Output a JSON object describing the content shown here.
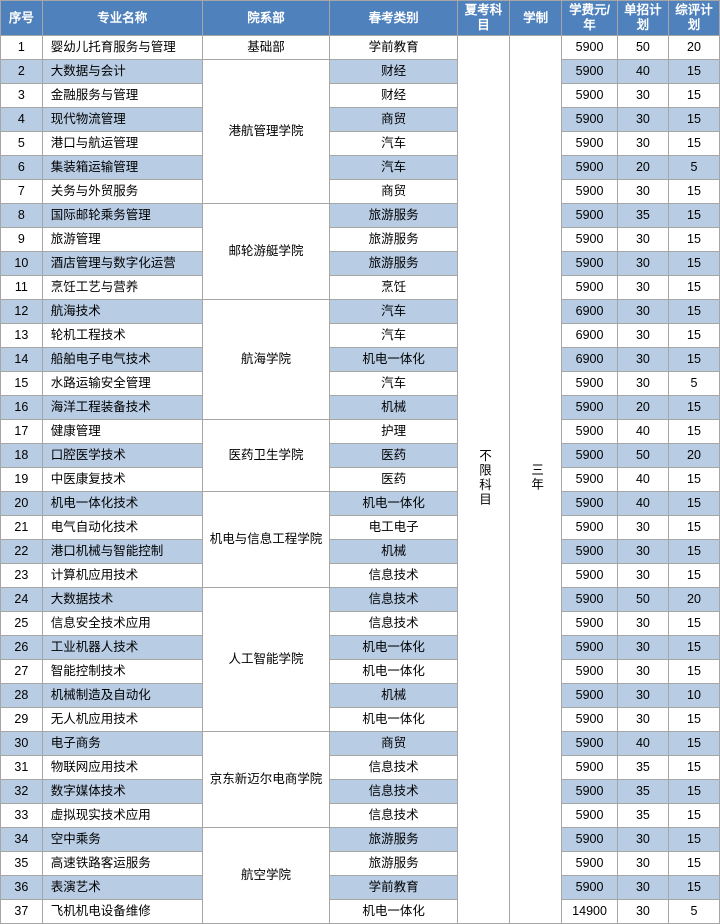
{
  "headers": [
    "序号",
    "专业名称",
    "院系部",
    "春考类别",
    "夏考科目",
    "学制",
    "学费元/年",
    "单招计划",
    "综评计划"
  ],
  "summer_subject": "不限科目",
  "duration": "三年",
  "departments": [
    {
      "name": "基础部",
      "start": 1,
      "span": 1
    },
    {
      "name": "港航管理学院",
      "start": 2,
      "span": 6
    },
    {
      "name": "邮轮游艇学院",
      "start": 8,
      "span": 4
    },
    {
      "name": "航海学院",
      "start": 12,
      "span": 5
    },
    {
      "name": "医药卫生学院",
      "start": 17,
      "span": 3
    },
    {
      "name": "机电与信息工程学院",
      "start": 20,
      "span": 4
    },
    {
      "name": "人工智能学院",
      "start": 24,
      "span": 6
    },
    {
      "name": "京东新迈尔电商学院",
      "start": 30,
      "span": 4
    },
    {
      "name": "航空学院",
      "start": 34,
      "span": 4
    }
  ],
  "rows": [
    {
      "n": 1,
      "major": "婴幼儿托育服务与管理",
      "cat": "学前教育",
      "fee": 5900,
      "p1": 50,
      "p2": 20
    },
    {
      "n": 2,
      "major": "大数据与会计",
      "cat": "财经",
      "fee": 5900,
      "p1": 40,
      "p2": 15
    },
    {
      "n": 3,
      "major": "金融服务与管理",
      "cat": "财经",
      "fee": 5900,
      "p1": 30,
      "p2": 15
    },
    {
      "n": 4,
      "major": "现代物流管理",
      "cat": "商贸",
      "fee": 5900,
      "p1": 30,
      "p2": 15
    },
    {
      "n": 5,
      "major": "港口与航运管理",
      "cat": "汽车",
      "fee": 5900,
      "p1": 30,
      "p2": 15
    },
    {
      "n": 6,
      "major": "集装箱运输管理",
      "cat": "汽车",
      "fee": 5900,
      "p1": 20,
      "p2": 5
    },
    {
      "n": 7,
      "major": "关务与外贸服务",
      "cat": "商贸",
      "fee": 5900,
      "p1": 30,
      "p2": 15
    },
    {
      "n": 8,
      "major": "国际邮轮乘务管理",
      "cat": "旅游服务",
      "fee": 5900,
      "p1": 35,
      "p2": 15
    },
    {
      "n": 9,
      "major": "旅游管理",
      "cat": "旅游服务",
      "fee": 5900,
      "p1": 30,
      "p2": 15
    },
    {
      "n": 10,
      "major": "酒店管理与数字化运营",
      "cat": "旅游服务",
      "fee": 5900,
      "p1": 30,
      "p2": 15
    },
    {
      "n": 11,
      "major": "烹饪工艺与营养",
      "cat": "烹饪",
      "fee": 5900,
      "p1": 30,
      "p2": 15
    },
    {
      "n": 12,
      "major": "航海技术",
      "cat": "汽车",
      "fee": 6900,
      "p1": 30,
      "p2": 15
    },
    {
      "n": 13,
      "major": "轮机工程技术",
      "cat": "汽车",
      "fee": 6900,
      "p1": 30,
      "p2": 15
    },
    {
      "n": 14,
      "major": "船舶电子电气技术",
      "cat": "机电一体化",
      "fee": 6900,
      "p1": 30,
      "p2": 15
    },
    {
      "n": 15,
      "major": "水路运输安全管理",
      "cat": "汽车",
      "fee": 5900,
      "p1": 30,
      "p2": 5
    },
    {
      "n": 16,
      "major": "海洋工程装备技术",
      "cat": "机械",
      "fee": 5900,
      "p1": 20,
      "p2": 15
    },
    {
      "n": 17,
      "major": "健康管理",
      "cat": "护理",
      "fee": 5900,
      "p1": 40,
      "p2": 15
    },
    {
      "n": 18,
      "major": "口腔医学技术",
      "cat": "医药",
      "fee": 5900,
      "p1": 50,
      "p2": 20
    },
    {
      "n": 19,
      "major": "中医康复技术",
      "cat": "医药",
      "fee": 5900,
      "p1": 40,
      "p2": 15
    },
    {
      "n": 20,
      "major": "机电一体化技术",
      "cat": "机电一体化",
      "fee": 5900,
      "p1": 40,
      "p2": 15
    },
    {
      "n": 21,
      "major": "电气自动化技术",
      "cat": "电工电子",
      "fee": 5900,
      "p1": 30,
      "p2": 15
    },
    {
      "n": 22,
      "major": "港口机械与智能控制",
      "cat": "机械",
      "fee": 5900,
      "p1": 30,
      "p2": 15
    },
    {
      "n": 23,
      "major": "计算机应用技术",
      "cat": "信息技术",
      "fee": 5900,
      "p1": 30,
      "p2": 15
    },
    {
      "n": 24,
      "major": "大数据技术",
      "cat": "信息技术",
      "fee": 5900,
      "p1": 50,
      "p2": 20
    },
    {
      "n": 25,
      "major": "信息安全技术应用",
      "cat": "信息技术",
      "fee": 5900,
      "p1": 30,
      "p2": 15
    },
    {
      "n": 26,
      "major": "工业机器人技术",
      "cat": "机电一体化",
      "fee": 5900,
      "p1": 30,
      "p2": 15
    },
    {
      "n": 27,
      "major": "智能控制技术",
      "cat": "机电一体化",
      "fee": 5900,
      "p1": 30,
      "p2": 15
    },
    {
      "n": 28,
      "major": "机械制造及自动化",
      "cat": "机械",
      "fee": 5900,
      "p1": 30,
      "p2": 10
    },
    {
      "n": 29,
      "major": "无人机应用技术",
      "cat": "机电一体化",
      "fee": 5900,
      "p1": 30,
      "p2": 15
    },
    {
      "n": 30,
      "major": "电子商务",
      "cat": "商贸",
      "fee": 5900,
      "p1": 40,
      "p2": 15
    },
    {
      "n": 31,
      "major": "物联网应用技术",
      "cat": "信息技术",
      "fee": 5900,
      "p1": 35,
      "p2": 15
    },
    {
      "n": 32,
      "major": "数字媒体技术",
      "cat": "信息技术",
      "fee": 5900,
      "p1": 35,
      "p2": 15
    },
    {
      "n": 33,
      "major": "虚拟现实技术应用",
      "cat": "信息技术",
      "fee": 5900,
      "p1": 35,
      "p2": 15
    },
    {
      "n": 34,
      "major": "空中乘务",
      "cat": "旅游服务",
      "fee": 5900,
      "p1": 30,
      "p2": 15
    },
    {
      "n": 35,
      "major": "高速铁路客运服务",
      "cat": "旅游服务",
      "fee": 5900,
      "p1": 30,
      "p2": 15
    },
    {
      "n": 36,
      "major": "表演艺术",
      "cat": "学前教育",
      "fee": 5900,
      "p1": 30,
      "p2": 15
    },
    {
      "n": 37,
      "major": "飞机机电设备维修",
      "cat": "机电一体化",
      "fee": 14900,
      "p1": 30,
      "p2": 5
    }
  ]
}
